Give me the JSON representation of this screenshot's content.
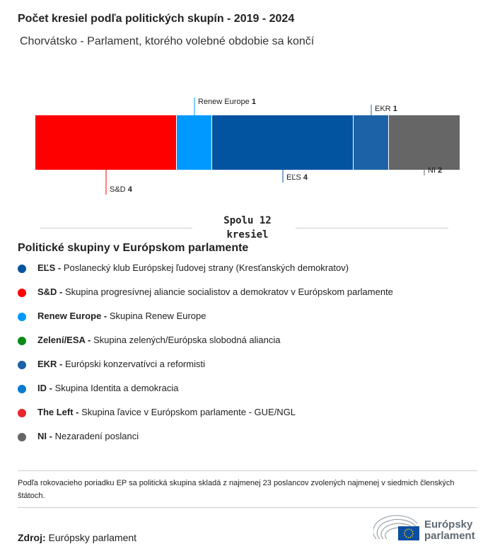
{
  "title": "Počet kresiel podľa politických skupín - 2019 - 2024",
  "subtitle": "Chorvátsko - Parlament, ktorého volebné obdobie sa končí",
  "chart_data": {
    "type": "bar",
    "orientation": "horizontal-stacked",
    "categories": [
      "S&D",
      "Renew Europe",
      "EĽS",
      "EKR",
      "NI"
    ],
    "values": [
      4,
      1,
      4,
      1,
      2
    ],
    "colors": [
      "#ff0000",
      "#0099ff",
      "#0253a0",
      "#1b63a6",
      "#666666"
    ],
    "label_position": [
      "below",
      "above",
      "below",
      "above",
      "below"
    ],
    "total_label": [
      "Spolu 12",
      "kresiel"
    ]
  },
  "legend_title": "Politické skupiny v Európskom parlamente",
  "legend": [
    {
      "abbr": "EĽS -",
      "name": "Poslanecký klub Európskej ľudovej strany (Kresťanských demokratov)",
      "color": "#0253a0"
    },
    {
      "abbr": "S&D -",
      "name": "Skupina progresívnej aliancie socialistov a demokratov v Európskom parlamente",
      "color": "#ff0000"
    },
    {
      "abbr": "Renew Europe -",
      "name": "Skupina Renew Europe",
      "color": "#0099ff"
    },
    {
      "abbr": "Zelení/ESA -",
      "name": "Skupina zelených/Európska slobodná aliancia",
      "color": "#0b8a16"
    },
    {
      "abbr": "EKR -",
      "name": "Európski konzervatívci a reformisti",
      "color": "#1b63a6"
    },
    {
      "abbr": "ID -",
      "name": "Skupina Identita a demokracia",
      "color": "#0a7ad2"
    },
    {
      "abbr": "The Left -",
      "name": "Skupina ľavice v Európskom parlamente - GUE/NGL",
      "color": "#e8262d"
    },
    {
      "abbr": "NI -",
      "name": "Nezaradení poslanci",
      "color": "#666666"
    }
  ],
  "note": "Podľa rokovacieho poriadku EP sa politická skupina skladá z najmenej 23 poslancov zvolených najmenej v siedmich členských štátoch.",
  "source_label": "Zdroj:",
  "source": "Európsky parlament",
  "logo": {
    "line1": "Európsky",
    "line2": "parlament"
  }
}
